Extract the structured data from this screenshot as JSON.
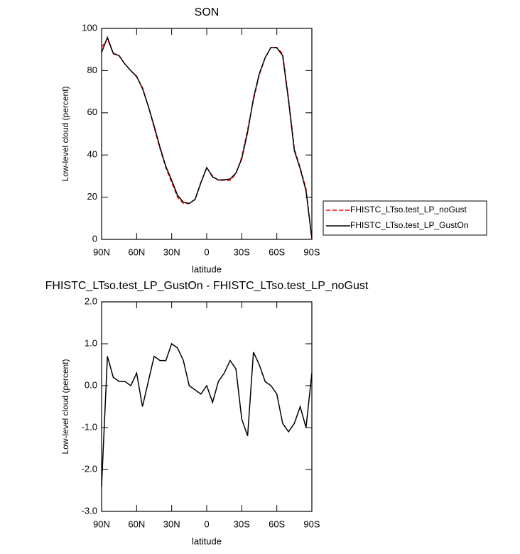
{
  "chart_data": [
    {
      "type": "line",
      "title": "SON",
      "x_label": "latitude",
      "y_label": "Low-level cloud (percent)",
      "x": [
        90,
        85,
        80,
        75,
        70,
        65,
        60,
        55,
        50,
        45,
        40,
        35,
        30,
        25,
        20,
        15,
        10,
        5,
        0,
        -5,
        -10,
        -15,
        -20,
        -25,
        -30,
        -35,
        -40,
        -45,
        -50,
        -55,
        -60,
        -65,
        -70,
        -75,
        -80,
        -85,
        -90
      ],
      "xlim": [
        90,
        -90
      ],
      "xticks": [
        {
          "value": 90,
          "label": "90N"
        },
        {
          "value": 60,
          "label": "60N"
        },
        {
          "value": 30,
          "label": "30N"
        },
        0,
        {
          "value": -30,
          "label": "30S"
        },
        {
          "value": -60,
          "label": "60S"
        },
        {
          "value": -90,
          "label": "90S"
        }
      ],
      "ylim": [
        0,
        100
      ],
      "yticks": [
        0,
        20,
        40,
        60,
        80,
        100
      ],
      "legend": "right",
      "series": [
        {
          "name": "FHISTC_LTso.test_LP_noGust",
          "color": "#ff0000",
          "dash": true,
          "values": [
            91,
            95,
            88,
            87,
            83,
            80,
            77,
            72,
            63,
            53,
            43,
            34,
            27,
            20,
            17,
            17,
            19,
            27,
            34,
            30,
            28,
            28,
            28,
            31,
            39,
            52,
            66,
            78,
            86,
            91,
            91,
            88,
            67,
            43,
            34,
            24,
            0
          ]
        },
        {
          "name": "FHISTC_LTso.test_LP_GustOn",
          "color": "#000000",
          "dash": false,
          "values": [
            88.6,
            95.7,
            88.2,
            87.1,
            83.1,
            80,
            77.3,
            71.5,
            63.1,
            53.7,
            43.6,
            34.6,
            28,
            20.9,
            17.6,
            17,
            18.9,
            26.8,
            34,
            29.6,
            28.1,
            28.3,
            28.6,
            31.4,
            38.2,
            50.8,
            66.8,
            78.5,
            86.1,
            91,
            90.8,
            87.1,
            65.9,
            42.1,
            33.5,
            23,
            0.3
          ]
        }
      ]
    },
    {
      "type": "line",
      "title": "FHISTC_LTso.test_LP_GustOn - FHISTC_LTso.test_LP_noGust",
      "x_label": "latitude",
      "y_label": "Low-level cloud (percent)",
      "x": [
        90,
        85,
        80,
        75,
        70,
        65,
        60,
        55,
        50,
        45,
        40,
        35,
        30,
        25,
        20,
        15,
        10,
        5,
        0,
        -5,
        -10,
        -15,
        -20,
        -25,
        -30,
        -35,
        -40,
        -45,
        -50,
        -55,
        -60,
        -65,
        -70,
        -75,
        -80,
        -85,
        -90
      ],
      "xlim": [
        90,
        -90
      ],
      "xticks": [
        {
          "value": 90,
          "label": "90N"
        },
        {
          "value": 60,
          "label": "60N"
        },
        {
          "value": 30,
          "label": "30N"
        },
        0,
        {
          "value": -30,
          "label": "30S"
        },
        {
          "value": -60,
          "label": "60S"
        },
        {
          "value": -90,
          "label": "90S"
        }
      ],
      "ylim": [
        -3,
        2
      ],
      "yticks": [
        {
          "value": -3,
          "label": "-3.0"
        },
        {
          "value": -2,
          "label": "-2.0"
        },
        {
          "value": -1,
          "label": "-1.0"
        },
        {
          "value": 0,
          "label": "0.0"
        },
        {
          "value": 1,
          "label": "1.0"
        },
        {
          "value": 2,
          "label": "2.0"
        }
      ],
      "series": [
        {
          "color": "#000000",
          "dash": false,
          "values": [
            -2.4,
            0.7,
            0.2,
            0.1,
            0.1,
            0.0,
            0.3,
            -0.5,
            0.1,
            0.7,
            0.6,
            0.6,
            1.0,
            0.9,
            0.6,
            0.0,
            -0.1,
            -0.2,
            0.0,
            -0.4,
            0.1,
            0.3,
            0.6,
            0.4,
            -0.8,
            -1.2,
            0.8,
            0.5,
            0.1,
            0.0,
            -0.2,
            -0.9,
            -1.1,
            -0.9,
            -0.5,
            -1.0,
            0.3
          ]
        }
      ]
    }
  ]
}
